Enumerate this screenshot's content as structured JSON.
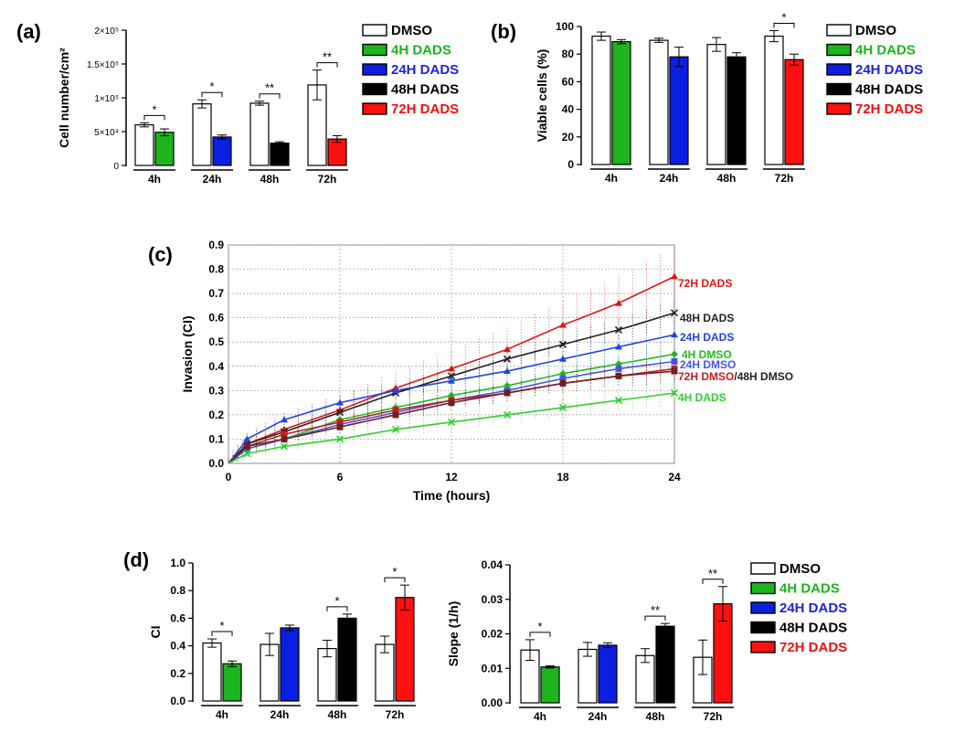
{
  "colors": {
    "DMSO": "#ffffff",
    "4H DADS": "#1db51d",
    "24H DADS": "#0b1fe0",
    "48H DADS": "#000000",
    "72H DADS": "#ff1010"
  },
  "legend_colors": {
    "DMSO": "#000000",
    "4H DADS": "#1db51d",
    "24H DADS": "#2222dd",
    "48H DADS": "#000000",
    "72H DADS": "#ee1111"
  },
  "line_colors": {
    "72H DADS": "#e01515",
    "48H DADS": "#222222",
    "24H DADS": "#2244dd",
    "4H DMSO": "#22bb22",
    "24H DMSO": "#4455ee",
    "72H DMSO": "#c02020",
    "48H DMSO": "#702020",
    "4H DADS": "#33cc33"
  },
  "legend_labels": [
    "DMSO",
    "4H DADS",
    "24H DADS",
    "48H DADS",
    "72H DADS"
  ],
  "chart_data": [
    {
      "id": "a",
      "panel_label": "(a)",
      "type": "bar",
      "ylabel": "Cell number/cm²",
      "ylim": [
        0,
        200000
      ],
      "yticks": [
        0,
        50000,
        100000,
        150000,
        200000
      ],
      "yticklabels": [
        "0",
        "5×10⁴",
        "1×10⁵",
        "1.5×10⁵",
        "2×10⁵"
      ],
      "groups": [
        {
          "label": "4h",
          "bars": [
            {
              "name": "DMSO",
              "value": 60000,
              "err": 3000
            },
            {
              "name": "4H DADS",
              "value": 49000,
              "err": 5000
            }
          ],
          "sig": "*"
        },
        {
          "label": "24h",
          "bars": [
            {
              "name": "DMSO",
              "value": 91000,
              "err": 6000
            },
            {
              "name": "24H DADS",
              "value": 42000,
              "err": 3000
            }
          ],
          "sig": "*"
        },
        {
          "label": "48h",
          "bars": [
            {
              "name": "DMSO",
              "value": 92000,
              "err": 3000
            },
            {
              "name": "48H DADS",
              "value": 33000,
              "err": 2000
            }
          ],
          "sig": "**"
        },
        {
          "label": "72h",
          "bars": [
            {
              "name": "DMSO",
              "value": 119000,
              "err": 22000
            },
            {
              "name": "72H DADS",
              "value": 39000,
              "err": 5000
            }
          ],
          "sig": "**"
        }
      ]
    },
    {
      "id": "b",
      "panel_label": "(b)",
      "type": "bar",
      "ylabel": "Viable  cells  (%)",
      "ylim": [
        0,
        100
      ],
      "yticks": [
        0,
        20,
        40,
        60,
        80,
        100
      ],
      "yticklabels": [
        "0",
        "20",
        "40",
        "60",
        "80",
        "100"
      ],
      "groups": [
        {
          "label": "4h",
          "bars": [
            {
              "name": "DMSO",
              "value": 93,
              "err": 3
            },
            {
              "name": "4H DADS",
              "value": 89,
              "err": 1.5
            }
          ],
          "sig": ""
        },
        {
          "label": "24h",
          "bars": [
            {
              "name": "DMSO",
              "value": 90,
              "err": 1.5
            },
            {
              "name": "24H DADS",
              "value": 78,
              "err": 7
            }
          ],
          "sig": ""
        },
        {
          "label": "48h",
          "bars": [
            {
              "name": "DMSO",
              "value": 87,
              "err": 5
            },
            {
              "name": "48H DADS",
              "value": 78,
              "err": 3
            }
          ],
          "sig": ""
        },
        {
          "label": "72h",
          "bars": [
            {
              "name": "DMSO",
              "value": 93,
              "err": 4
            },
            {
              "name": "72H DADS",
              "value": 76,
              "err": 4
            }
          ],
          "sig": "*"
        }
      ]
    },
    {
      "id": "c",
      "panel_label": "(c)",
      "type": "line",
      "xlabel": "Time (hours)",
      "ylabel": "Invasion (CI)",
      "xlim": [
        0,
        24
      ],
      "ylim": [
        0,
        0.9
      ],
      "xticks": [
        0,
        6,
        12,
        18,
        24
      ],
      "yticks": [
        0,
        0.1,
        0.2,
        0.3,
        0.4,
        0.5,
        0.6,
        0.7,
        0.8,
        0.9
      ],
      "yticklabels": [
        "0.0",
        "0.1",
        "0.2",
        "0.3",
        "0.4",
        "0.5",
        "0.6",
        "0.7",
        "0.8",
        "0.9"
      ],
      "series": [
        {
          "name": "72H DADS",
          "marker": "triangle",
          "err": 0.12,
          "x": [
            0,
            1,
            3,
            6,
            9,
            12,
            15,
            18,
            21,
            24
          ],
          "y": [
            0,
            0.08,
            0.14,
            0.22,
            0.31,
            0.39,
            0.47,
            0.57,
            0.66,
            0.77
          ]
        },
        {
          "name": "48H DADS",
          "marker": "x",
          "err": 0.05,
          "x": [
            0,
            1,
            3,
            6,
            9,
            12,
            15,
            18,
            21,
            24
          ],
          "y": [
            0,
            0.08,
            0.13,
            0.21,
            0.29,
            0.36,
            0.43,
            0.49,
            0.55,
            0.62
          ]
        },
        {
          "name": "24H DADS",
          "marker": "triangle",
          "err": 0.07,
          "x": [
            0,
            1,
            3,
            6,
            9,
            12,
            15,
            18,
            21,
            24
          ],
          "y": [
            0,
            0.1,
            0.18,
            0.25,
            0.3,
            0.34,
            0.38,
            0.43,
            0.48,
            0.53
          ]
        },
        {
          "name": "4H DMSO",
          "marker": "diamond",
          "err": 0.06,
          "x": [
            0,
            1,
            3,
            6,
            9,
            12,
            15,
            18,
            21,
            24
          ],
          "y": [
            0,
            0.06,
            0.1,
            0.18,
            0.23,
            0.28,
            0.32,
            0.37,
            0.41,
            0.45
          ]
        },
        {
          "name": "24H DMSO",
          "marker": "square",
          "err": 0.05,
          "x": [
            0,
            1,
            3,
            6,
            9,
            12,
            15,
            18,
            21,
            24
          ],
          "y": [
            0,
            0.06,
            0.1,
            0.16,
            0.21,
            0.26,
            0.3,
            0.35,
            0.39,
            0.42
          ]
        },
        {
          "name": "72H DMSO",
          "marker": "square",
          "err": 0.05,
          "x": [
            0,
            1,
            3,
            6,
            9,
            12,
            15,
            18,
            21,
            24
          ],
          "y": [
            0,
            0.07,
            0.12,
            0.17,
            0.22,
            0.26,
            0.29,
            0.33,
            0.36,
            0.39
          ]
        },
        {
          "name": "48H DMSO",
          "marker": "square",
          "err": 0.05,
          "x": [
            0,
            1,
            3,
            6,
            9,
            12,
            15,
            18,
            21,
            24
          ],
          "y": [
            0,
            0.07,
            0.1,
            0.15,
            0.2,
            0.25,
            0.29,
            0.33,
            0.36,
            0.38
          ]
        },
        {
          "name": "4H DADS",
          "marker": "x",
          "err": 0.05,
          "x": [
            0,
            1,
            3,
            6,
            9,
            12,
            15,
            18,
            21,
            24
          ],
          "y": [
            0,
            0.04,
            0.07,
            0.1,
            0.14,
            0.17,
            0.2,
            0.23,
            0.26,
            0.29
          ]
        }
      ],
      "annotations": [
        {
          "text": "72H DADS",
          "color_key": "72H DADS"
        },
        {
          "text": "48H DADS",
          "color_key": "48H DADS"
        },
        {
          "text": "24H DADS",
          "color_key": "24H DADS"
        },
        {
          "text": "4H DMSO",
          "color_key": "4H DMSO"
        },
        {
          "text": "24H DMSO",
          "color_key": "24H DMSO"
        },
        {
          "text": "72H DMSO",
          "color_key": "72H DMSO"
        },
        {
          "text": "/48H DMSO",
          "color_key": "48H DADS"
        },
        {
          "text": "4H DADS",
          "color_key": "4H DADS"
        }
      ]
    },
    {
      "id": "d1",
      "panel_label": "(d)",
      "type": "bar",
      "ylabel": "CI",
      "ylim": [
        0,
        1.0
      ],
      "yticks": [
        0,
        0.2,
        0.4,
        0.6,
        0.8,
        1.0
      ],
      "yticklabels": [
        "0.0",
        "0.2",
        "0.4",
        "0.6",
        "0.8",
        "1.0"
      ],
      "groups": [
        {
          "label": "4h",
          "bars": [
            {
              "name": "DMSO",
              "value": 0.42,
              "err": 0.03
            },
            {
              "name": "4H DADS",
              "value": 0.27,
              "err": 0.02
            }
          ],
          "sig": "*"
        },
        {
          "label": "24h",
          "bars": [
            {
              "name": "DMSO",
              "value": 0.41,
              "err": 0.08
            },
            {
              "name": "24H DADS",
              "value": 0.53,
              "err": 0.02
            }
          ],
          "sig": ""
        },
        {
          "label": "48h",
          "bars": [
            {
              "name": "DMSO",
              "value": 0.38,
              "err": 0.06
            },
            {
              "name": "48H DADS",
              "value": 0.6,
              "err": 0.03
            }
          ],
          "sig": "*"
        },
        {
          "label": "72h",
          "bars": [
            {
              "name": "DMSO",
              "value": 0.41,
              "err": 0.06
            },
            {
              "name": "72H DADS",
              "value": 0.75,
              "err": 0.09
            }
          ],
          "sig": "*"
        }
      ]
    },
    {
      "id": "d2",
      "panel_label": "",
      "type": "bar",
      "ylabel": "Slope  (1/h)",
      "ylim": [
        0,
        0.04
      ],
      "yticks": [
        0,
        0.01,
        0.02,
        0.03,
        0.04
      ],
      "yticklabels": [
        "0.00",
        "0.01",
        "0.02",
        "0.03",
        "0.04"
      ],
      "groups": [
        {
          "label": "4h",
          "bars": [
            {
              "name": "DMSO",
              "value": 0.0153,
              "err": 0.003
            },
            {
              "name": "4H DADS",
              "value": 0.0104,
              "err": 0.0003
            }
          ],
          "sig": "*"
        },
        {
          "label": "24h",
          "bars": [
            {
              "name": "DMSO",
              "value": 0.0155,
              "err": 0.002
            },
            {
              "name": "24H DADS",
              "value": 0.0167,
              "err": 0.0007
            }
          ],
          "sig": ""
        },
        {
          "label": "48h",
          "bars": [
            {
              "name": "DMSO",
              "value": 0.0137,
              "err": 0.002
            },
            {
              "name": "48H DADS",
              "value": 0.0222,
              "err": 0.0008
            }
          ],
          "sig": "**"
        },
        {
          "label": "72h",
          "bars": [
            {
              "name": "DMSO",
              "value": 0.0132,
              "err": 0.005
            },
            {
              "name": "72H DADS",
              "value": 0.0287,
              "err": 0.005
            }
          ],
          "sig": "**"
        }
      ]
    }
  ]
}
